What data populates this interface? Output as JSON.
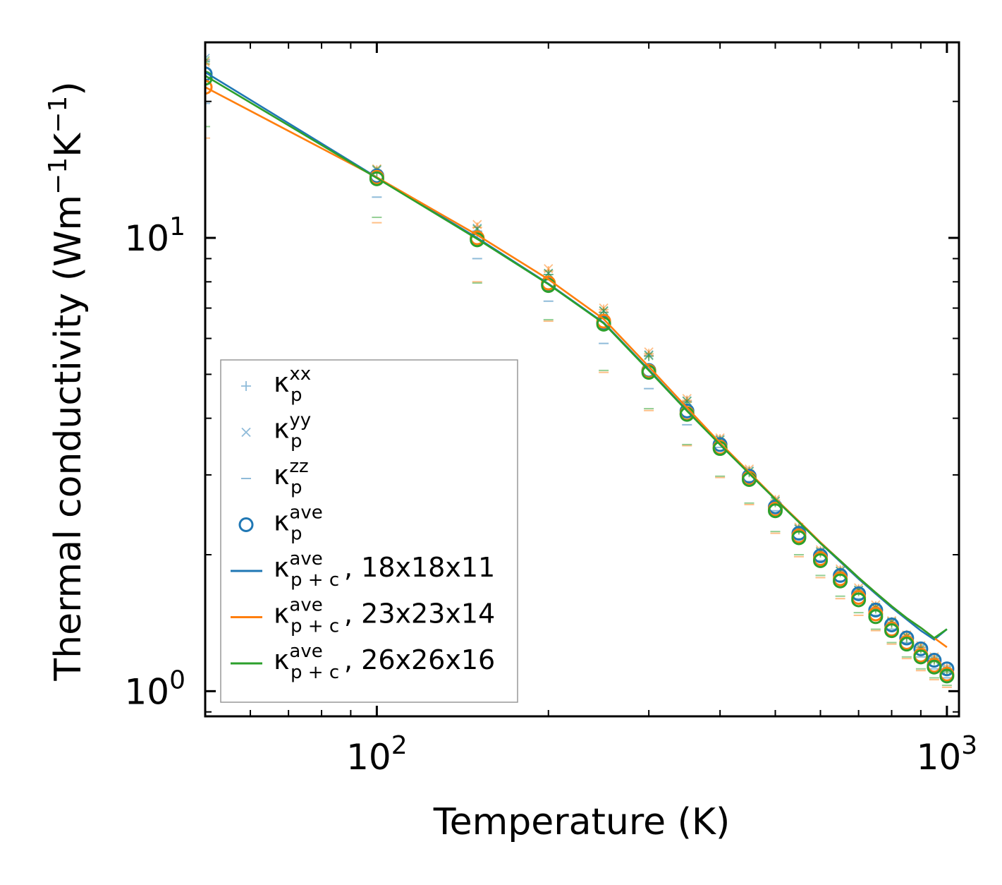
{
  "chart_data": {
    "type": "scatter",
    "xscale": "log",
    "yscale": "log",
    "xlim": [
      50,
      1050
    ],
    "ylim": [
      0.88,
      27
    ],
    "xlabel": "Temperature (K)",
    "ylabel": {
      "main": "Thermal conductivity (Wm",
      "exp1": "−1",
      "mid": "K",
      "exp2": "−1",
      "close": ")"
    },
    "x_ticks": [
      {
        "base": "10",
        "exp": "2",
        "value": 100
      },
      {
        "base": "10",
        "exp": "3",
        "value": 1000
      }
    ],
    "y_ticks": [
      {
        "base": "10",
        "exp": "0",
        "value": 1
      },
      {
        "base": "10",
        "exp": "1",
        "value": 10
      }
    ],
    "x": [
      50,
      100,
      150,
      200,
      250,
      300,
      350,
      400,
      450,
      500,
      550,
      600,
      650,
      700,
      750,
      800,
      850,
      900,
      950,
      1000
    ],
    "series": [
      {
        "name": "κp^xx (18x18x11)",
        "kind": "plus",
        "color": "#1f77b4",
        "values": [
          24.7,
          13.95,
          10.35,
          8.3,
          6.85,
          5.5,
          4.36,
          3.58,
          3.05,
          2.62,
          2.28,
          2.03,
          1.84,
          1.67,
          1.53,
          1.42,
          1.32,
          1.25,
          1.18,
          1.12
        ]
      },
      {
        "name": "κp^xx (23x23x14)",
        "kind": "plus",
        "color": "#ff7f0e",
        "values": [
          24.2,
          14.1,
          10.55,
          8.45,
          6.95,
          5.55,
          4.38,
          3.6,
          3.07,
          2.64,
          2.29,
          2.04,
          1.85,
          1.68,
          1.54,
          1.42,
          1.33,
          1.25,
          1.18,
          1.12
        ]
      },
      {
        "name": "κp^xx (26x26x16)",
        "kind": "plus",
        "color": "#2ca02c",
        "values": [
          24.5,
          14.0,
          10.3,
          8.3,
          6.85,
          5.48,
          4.34,
          3.57,
          3.04,
          2.61,
          2.27,
          2.02,
          1.83,
          1.66,
          1.52,
          1.41,
          1.31,
          1.24,
          1.17,
          1.11
        ]
      },
      {
        "name": "κp^yy (18x18x11)",
        "kind": "cross",
        "color": "#1f77b4",
        "values": [
          24.9,
          14.1,
          10.5,
          8.35,
          6.9,
          5.52,
          4.37,
          3.59,
          3.06,
          2.63,
          2.28,
          2.03,
          1.84,
          1.67,
          1.53,
          1.42,
          1.32,
          1.25,
          1.18,
          1.12
        ]
      },
      {
        "name": "κp^yy (23x23x14)",
        "kind": "cross",
        "color": "#ff7f0e",
        "values": [
          24.4,
          14.2,
          10.7,
          8.55,
          7.0,
          5.6,
          4.42,
          3.62,
          3.09,
          2.65,
          2.3,
          2.05,
          1.86,
          1.69,
          1.55,
          1.43,
          1.33,
          1.26,
          1.19,
          1.13
        ]
      },
      {
        "name": "κp^yy (26x26x16)",
        "kind": "cross",
        "color": "#2ca02c",
        "values": [
          24.6,
          14.15,
          10.45,
          8.35,
          6.9,
          5.5,
          4.36,
          3.58,
          3.05,
          2.62,
          2.28,
          2.03,
          1.84,
          1.67,
          1.53,
          1.42,
          1.32,
          1.24,
          1.17,
          1.11
        ]
      },
      {
        "name": "κp^zz (18x18x11)",
        "kind": "dash",
        "color": "#1f77b4",
        "values": [
          19.8,
          12.3,
          9.0,
          7.25,
          5.85,
          4.65,
          3.87,
          3.45,
          2.9,
          2.5,
          2.17,
          1.94,
          1.75,
          1.6,
          1.47,
          1.37,
          1.28,
          1.19,
          1.12,
          1.07
        ]
      },
      {
        "name": "κp^zz (23x23x14)",
        "kind": "dash",
        "color": "#ff7f0e",
        "values": [
          16.6,
          10.8,
          8.0,
          6.55,
          5.05,
          4.16,
          3.48,
          2.96,
          2.58,
          2.23,
          1.98,
          1.78,
          1.6,
          1.47,
          1.36,
          1.27,
          1.18,
          1.11,
          1.06,
          1.02
        ]
      },
      {
        "name": "κp^zz (26x26x16)",
        "kind": "dash",
        "color": "#2ca02c",
        "values": [
          17.6,
          11.1,
          7.95,
          6.6,
          5.1,
          4.2,
          3.5,
          2.98,
          2.6,
          2.25,
          2.0,
          1.8,
          1.62,
          1.49,
          1.37,
          1.28,
          1.19,
          1.12,
          1.07,
          1.03
        ]
      },
      {
        "name": "κp^ave (18x18x11)",
        "kind": "circle",
        "color": "#1f77b4",
        "values": [
          23.0,
          13.7,
          9.95,
          7.9,
          6.5,
          5.1,
          4.15,
          3.5,
          2.98,
          2.55,
          2.23,
          1.99,
          1.8,
          1.64,
          1.51,
          1.4,
          1.31,
          1.24,
          1.17,
          1.12
        ]
      },
      {
        "name": "κp^ave (23x23x14)",
        "kind": "circle",
        "color": "#ff7f0e",
        "values": [
          21.5,
          13.6,
          10.0,
          7.95,
          6.55,
          5.08,
          4.1,
          3.45,
          2.95,
          2.52,
          2.2,
          1.96,
          1.77,
          1.61,
          1.48,
          1.37,
          1.28,
          1.2,
          1.14,
          1.09
        ]
      },
      {
        "name": "κp^ave (26x26x16)",
        "kind": "circle",
        "color": "#2ca02c",
        "values": [
          22.5,
          13.5,
          9.9,
          7.85,
          6.45,
          5.05,
          4.08,
          3.43,
          2.93,
          2.5,
          2.18,
          1.94,
          1.75,
          1.59,
          1.46,
          1.36,
          1.27,
          1.19,
          1.13,
          1.08
        ]
      },
      {
        "name": "κp+c^ave, 18x18x11",
        "kind": "line",
        "color": "#1f77b4",
        "values": [
          23.2,
          13.6,
          10.0,
          7.92,
          6.5,
          5.12,
          4.16,
          3.5,
          3.02,
          2.65,
          2.36,
          2.12,
          1.93,
          1.77,
          1.64,
          1.53,
          1.44,
          1.36,
          1.3,
          1.37
        ]
      },
      {
        "name": "κp+c^ave, 23x23x14",
        "kind": "line",
        "color": "#ff7f0e",
        "values": [
          21.5,
          13.6,
          10.15,
          8.1,
          6.62,
          5.2,
          4.22,
          3.53,
          3.04,
          2.66,
          2.37,
          2.13,
          1.94,
          1.78,
          1.65,
          1.54,
          1.45,
          1.38,
          1.31,
          1.25
        ]
      },
      {
        "name": "κp+c^ave, 26x26x16",
        "kind": "line",
        "color": "#2ca02c",
        "values": [
          22.8,
          13.55,
          9.95,
          7.9,
          6.48,
          5.1,
          4.15,
          3.5,
          3.02,
          2.65,
          2.36,
          2.12,
          1.94,
          1.78,
          1.65,
          1.54,
          1.45,
          1.38,
          1.31,
          1.37
        ]
      }
    ],
    "legend": {
      "position": "lower-left",
      "entries": [
        {
          "kind": "plus",
          "color": "#1f77b4",
          "base": "κ",
          "sub": "p",
          "sup": "xx",
          "suffix": ""
        },
        {
          "kind": "cross",
          "color": "#1f77b4",
          "base": "κ",
          "sub": "p",
          "sup": "yy",
          "suffix": ""
        },
        {
          "kind": "dash",
          "color": "#1f77b4",
          "base": "κ",
          "sub": "p",
          "sup": "zz",
          "suffix": ""
        },
        {
          "kind": "circle",
          "color": "#1f77b4",
          "base": "κ",
          "sub": "p",
          "sup": "ave",
          "suffix": ""
        },
        {
          "kind": "line",
          "color": "#1f77b4",
          "base": "κ",
          "sub": "p + c",
          "sup": "ave",
          "suffix": ", 18x18x11"
        },
        {
          "kind": "line",
          "color": "#ff7f0e",
          "base": "κ",
          "sub": "p + c",
          "sup": "ave",
          "suffix": ", 23x23x14"
        },
        {
          "kind": "line",
          "color": "#2ca02c",
          "base": "κ",
          "sub": "p + c",
          "sup": "ave",
          "suffix": ", 26x26x16"
        }
      ]
    },
    "grid": false
  }
}
